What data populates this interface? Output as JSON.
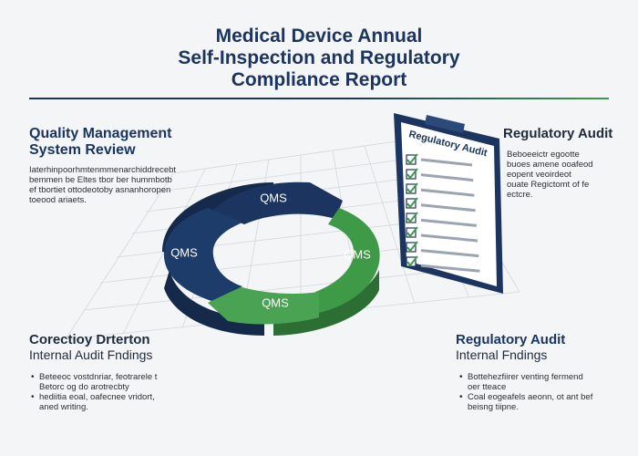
{
  "header": {
    "title_line1": "Medical Device Annual",
    "title_line2": "Self-Inspection and Regulatory",
    "title_line3": "Compliance Report"
  },
  "colors": {
    "navy": "#1b3560",
    "green": "#3f9a48",
    "grid": "#cfd3d9"
  },
  "qms_review": {
    "heading_line1": "Quality Management",
    "heading_line2": "System Review",
    "body": [
      "Iaterhinpoorhmtenmmenarchiddrecebt",
      "bemmen be  Eltes tbor ber hummbotb",
      "ef tbortiet ottodeotoby asnanhoropen",
      "toeood ariaets."
    ]
  },
  "regulatory_audit_top": {
    "heading": "Regulatory Audit",
    "body": [
      "Beboeeictr egootte",
      "buoes amene ooafeod",
      "eopent veoirdeot",
      "ouate Regictomt of fe",
      "ectcre."
    ]
  },
  "cycle": {
    "segments": [
      {
        "label": "QMS",
        "icon": "cycle-segment-top"
      },
      {
        "label": "QMS",
        "icon": "cycle-segment-right"
      },
      {
        "label": "QMS",
        "icon": "cycle-segment-bottom"
      },
      {
        "label": "QMS",
        "icon": "cycle-segment-left"
      }
    ]
  },
  "clipboard": {
    "title": "Regulatory Audit",
    "items": 8,
    "icon": "checklist-icon"
  },
  "corrective": {
    "heading": "Corectioy Drterton",
    "subheading": "Internal Audit Fndings",
    "bullet1_line1": "Beteeoc vostdnriar, feotrarele t",
    "bullet1_line2": "Betorc og do arotrecbty",
    "bullet2_line1": "hediitia eoal, oafecnee vridort,",
    "bullet2_line2": "aned writing."
  },
  "regulatory_audit_bottom": {
    "heading": "Regulatory Audit",
    "subheading": "Internal Fndings",
    "bullet1_line1": "Bottehezfiirer venting fermend",
    "bullet1_line2": "oer tteace",
    "bullet2_line1": "Coal eogeafels aeonn, ot ant bef",
    "bullet2_line2": "beisng tiipne."
  }
}
